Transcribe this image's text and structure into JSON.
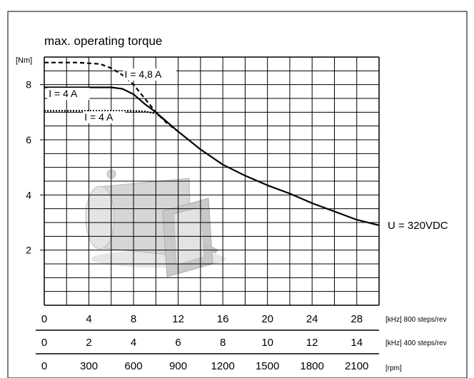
{
  "chart_data": {
    "type": "line",
    "title": "max. operating torque",
    "ylabel": "[Nm]",
    "ylim": [
      0,
      9
    ],
    "xlim": [
      0,
      30
    ],
    "grid": true,
    "y_ticks": [
      2,
      4,
      6,
      8
    ],
    "x_axes": [
      {
        "ticks": [
          0,
          4,
          8,
          12,
          16,
          20,
          24,
          28
        ],
        "tick_labels": [
          "0",
          "4",
          "8",
          "12",
          "16",
          "20",
          "24",
          "28"
        ],
        "unit": "[kHz] 800 steps/rev"
      },
      {
        "ticks": [
          0,
          4,
          8,
          12,
          16,
          20,
          24,
          28
        ],
        "tick_labels": [
          "0",
          "2",
          "4",
          "6",
          "8",
          "10",
          "12",
          "14"
        ],
        "unit": "[kHz] 400 steps/rev"
      },
      {
        "ticks": [
          0,
          4,
          8,
          12,
          16,
          20,
          24,
          28
        ],
        "tick_labels": [
          "0",
          "300",
          "600",
          "900",
          "1200",
          "1500",
          "1800",
          "2100"
        ],
        "unit": "[rpm]"
      }
    ],
    "series": [
      {
        "name": "I = 4 A",
        "style": "solid",
        "x": [
          0,
          6,
          7,
          8,
          9,
          10,
          11,
          12,
          14,
          16,
          18,
          20,
          22,
          24,
          26,
          28,
          30
        ],
        "y": [
          7.9,
          7.9,
          7.85,
          7.65,
          7.3,
          7.0,
          6.65,
          6.3,
          5.65,
          5.1,
          4.7,
          4.35,
          4.05,
          3.7,
          3.4,
          3.1,
          2.9
        ]
      },
      {
        "name": "I = 4,8 A",
        "style": "dashed",
        "x": [
          0,
          3,
          5,
          6,
          7,
          8,
          9,
          10,
          11,
          12
        ],
        "y": [
          8.8,
          8.8,
          8.75,
          8.6,
          8.35,
          8.0,
          7.5,
          7.0,
          6.6,
          6.3
        ]
      },
      {
        "name": "I = 4 A",
        "style": "dotted",
        "x": [
          0,
          8,
          9,
          10,
          11
        ],
        "y": [
          7.05,
          7.05,
          7.03,
          6.95,
          6.65
        ]
      }
    ],
    "annotations": [
      "U = 320VDC"
    ]
  }
}
